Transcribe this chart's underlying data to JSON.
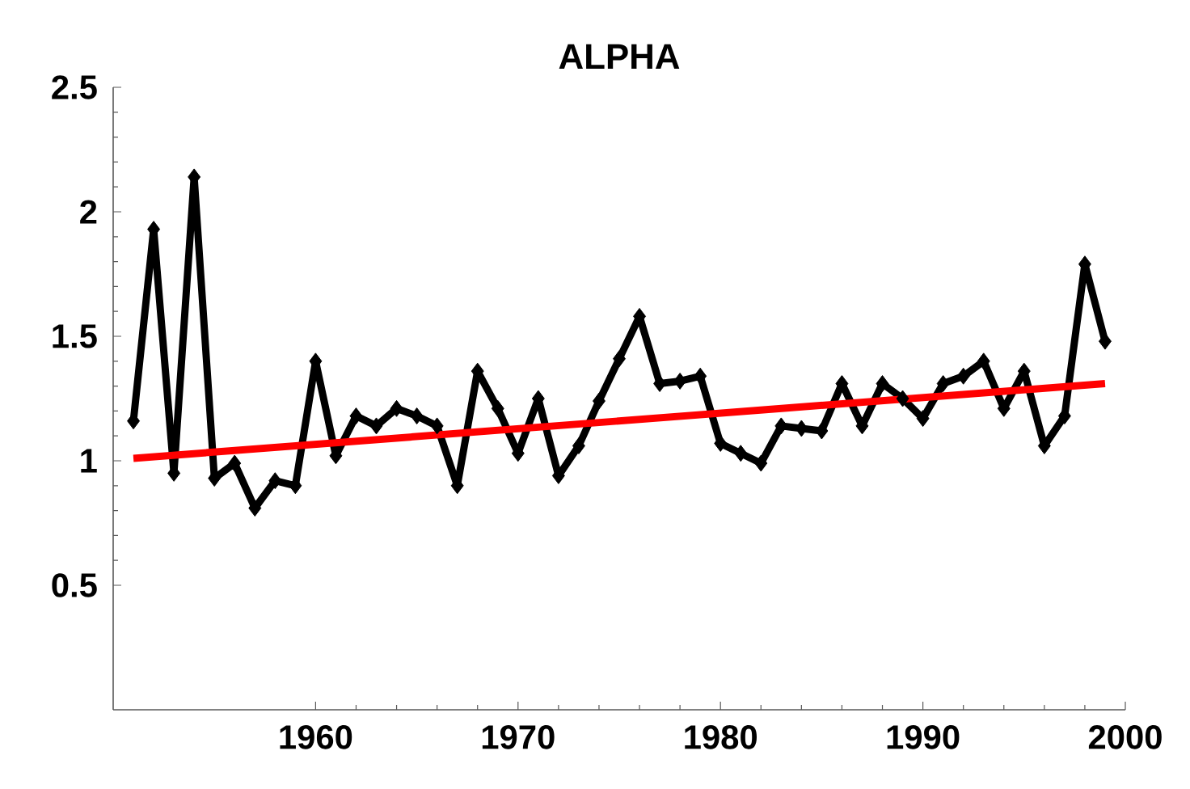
{
  "chart_data": {
    "type": "line",
    "title": "ALPHA",
    "xlim": [
      1950,
      2000
    ],
    "xticks": [
      1960,
      1970,
      1980,
      1990,
      2000
    ],
    "ylim": [
      0,
      2.5
    ],
    "yticks": [
      0.5,
      1,
      1.5,
      2,
      2.5
    ],
    "series": [
      {
        "color": "#000000",
        "marker": "diamond",
        "x": [
          1951,
          1952,
          1953,
          1954,
          1955,
          1956,
          1957,
          1958,
          1959,
          1960,
          1961,
          1962,
          1963,
          1964,
          1965,
          1966,
          1967,
          1968,
          1969,
          1970,
          1971,
          1972,
          1973,
          1974,
          1975,
          1976,
          1977,
          1978,
          1979,
          1980,
          1981,
          1982,
          1983,
          1984,
          1985,
          1986,
          1987,
          1988,
          1989,
          1990,
          1991,
          1992,
          1993,
          1994,
          1995,
          1996,
          1997,
          1998,
          1999
        ],
        "values": [
          1.16,
          1.93,
          0.95,
          2.14,
          0.93,
          0.99,
          0.81,
          0.92,
          0.9,
          1.4,
          1.02,
          1.18,
          1.14,
          1.21,
          1.18,
          1.14,
          0.9,
          1.36,
          1.21,
          1.03,
          1.25,
          0.94,
          1.06,
          1.24,
          1.41,
          1.58,
          1.31,
          1.32,
          1.34,
          1.07,
          1.03,
          0.99,
          1.14,
          1.13,
          1.12,
          1.31,
          1.14,
          1.31,
          1.25,
          1.17,
          1.31,
          1.34,
          1.4,
          1.21,
          1.36,
          1.06,
          1.18,
          1.79,
          1.48
        ]
      },
      {
        "type": "line",
        "color": "#ff0000",
        "marker": "none",
        "x": [
          1951,
          1999
        ],
        "values": [
          1.01,
          1.31
        ]
      }
    ]
  }
}
